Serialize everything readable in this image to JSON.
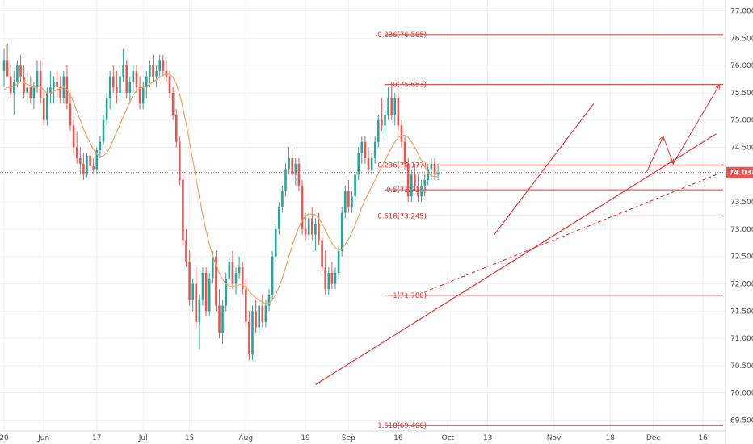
{
  "chart_data": {
    "type": "candlestick",
    "colors": {
      "up": "#26a69a",
      "down": "#ef5350",
      "ma": "#f4a261",
      "fib": "#e53935",
      "trend": "#e53935",
      "price_tag": "#ef5350",
      "grid": "#eef0f3",
      "axis_text": "#4a4a4a"
    },
    "ylim": [
      69.3,
      77.2
    ],
    "y_ticks": [
      "69.500",
      "70.000",
      "70.500",
      "71.000",
      "71.500",
      "72.000",
      "72.500",
      "73.000",
      "73.500",
      "74.000",
      "74.500",
      "75.000",
      "75.500",
      "76.000",
      "76.500",
      "77.000"
    ],
    "x_ticks": [
      {
        "label": "20",
        "day": 0
      },
      {
        "label": "Jun",
        "day": 12
      },
      {
        "label": "17",
        "day": 28
      },
      {
        "label": "Jul",
        "day": 42
      },
      {
        "label": "15",
        "day": 56
      },
      {
        "label": "Aug",
        "day": 73
      },
      {
        "label": "19",
        "day": 91
      },
      {
        "label": "Sep",
        "day": 104
      },
      {
        "label": "16",
        "day": 119
      },
      {
        "label": "Oct",
        "day": 134
      },
      {
        "label": "13",
        "day": 146
      },
      {
        "label": "Nov",
        "day": 166
      },
      {
        "label": "18",
        "day": 183
      },
      {
        "label": "Dec",
        "day": 196
      },
      {
        "label": "16",
        "day": 211
      }
    ],
    "last_price": {
      "label": "74.038",
      "value": 74.038
    },
    "fib_levels": [
      {
        "label": "-0.236(76.565)",
        "value": 76.565
      },
      {
        "label": "0(75.653)",
        "value": 75.653
      },
      {
        "label": "0.236(74.177)",
        "value": 74.177
      },
      {
        "label": "0.5(73.721)",
        "value": 73.721
      },
      {
        "label": "0.618(73.245)",
        "value": 73.245
      },
      {
        "label": "1(71.788)",
        "value": 71.788
      },
      {
        "label": "1.618(69.400)",
        "value": 69.4
      }
    ],
    "trendlines": [
      {
        "style": "solid",
        "from": {
          "day": 94,
          "y": 70.15
        },
        "to": {
          "day": 215,
          "y": 74.75
        }
      },
      {
        "style": "dashed",
        "from": {
          "day": 127,
          "y": 71.85
        },
        "to": {
          "day": 215,
          "y": 74.0
        }
      },
      {
        "style": "solid",
        "from": {
          "day": 148,
          "y": 72.9
        },
        "to": {
          "day": 178,
          "y": 75.3
        }
      }
    ],
    "projection_arrows": [
      {
        "from": {
          "day": 194,
          "y": 74.05
        },
        "to": {
          "day": 199,
          "y": 74.7
        }
      },
      {
        "from": {
          "day": 199,
          "y": 74.7
        },
        "to": {
          "day": 202,
          "y": 74.2
        }
      },
      {
        "from": {
          "day": 202,
          "y": 74.2
        },
        "to": {
          "day": 216,
          "y": 75.65
        }
      }
    ],
    "candles": [
      [
        75.9,
        76.3,
        75.6,
        76.1
      ],
      [
        76.1,
        76.4,
        75.8,
        75.8
      ],
      [
        75.8,
        76.0,
        75.4,
        75.5
      ],
      [
        75.5,
        75.9,
        75.1,
        75.7
      ],
      [
        75.7,
        76.1,
        75.6,
        76.0
      ],
      [
        76.0,
        76.2,
        75.7,
        75.8
      ],
      [
        75.8,
        76.0,
        75.4,
        75.5
      ],
      [
        75.5,
        75.9,
        75.3,
        75.6
      ],
      [
        75.6,
        75.8,
        75.3,
        75.4
      ],
      [
        75.4,
        75.7,
        75.2,
        75.6
      ],
      [
        75.6,
        76.1,
        75.5,
        75.9
      ],
      [
        75.9,
        76.1,
        75.3,
        75.4
      ],
      [
        75.4,
        75.6,
        74.9,
        75.0
      ],
      [
        75.0,
        75.6,
        74.9,
        75.5
      ],
      [
        75.5,
        75.9,
        75.3,
        75.6
      ],
      [
        75.6,
        75.8,
        75.3,
        75.7
      ],
      [
        75.7,
        75.9,
        75.4,
        75.6
      ],
      [
        75.6,
        75.8,
        75.3,
        75.4
      ],
      [
        75.4,
        75.9,
        75.3,
        75.8
      ],
      [
        75.8,
        76.0,
        75.2,
        75.3
      ],
      [
        75.3,
        75.5,
        74.8,
        74.9
      ],
      [
        74.9,
        75.0,
        74.4,
        74.5
      ],
      [
        74.5,
        74.8,
        74.2,
        74.3
      ],
      [
        74.3,
        74.5,
        74.0,
        74.2
      ],
      [
        74.2,
        74.4,
        73.9,
        74.0
      ],
      [
        74.0,
        74.4,
        73.95,
        74.35
      ],
      [
        74.35,
        74.5,
        74.1,
        74.15
      ],
      [
        74.15,
        74.3,
        74.0,
        74.1
      ],
      [
        74.1,
        74.5,
        74.0,
        74.45
      ],
      [
        74.45,
        74.7,
        74.3,
        74.6
      ],
      [
        74.6,
        75.1,
        74.55,
        75.0
      ],
      [
        75.0,
        75.5,
        74.9,
        75.4
      ],
      [
        75.4,
        75.9,
        75.2,
        75.8
      ],
      [
        75.8,
        76.0,
        75.5,
        75.6
      ],
      [
        75.6,
        75.9,
        75.3,
        75.5
      ],
      [
        75.5,
        75.9,
        75.4,
        75.8
      ],
      [
        75.8,
        76.3,
        75.7,
        76.0
      ],
      [
        76.0,
        76.1,
        75.4,
        75.5
      ],
      [
        75.5,
        75.8,
        75.3,
        75.7
      ],
      [
        75.7,
        76.0,
        75.5,
        75.9
      ],
      [
        75.9,
        76.0,
        75.5,
        75.6
      ],
      [
        75.6,
        75.8,
        75.2,
        75.3
      ],
      [
        75.3,
        75.7,
        75.2,
        75.6
      ],
      [
        75.6,
        75.9,
        75.4,
        75.8
      ],
      [
        75.8,
        76.1,
        75.6,
        76.0
      ],
      [
        76.0,
        76.2,
        75.7,
        75.8
      ],
      [
        75.8,
        76.0,
        75.6,
        75.9
      ],
      [
        75.9,
        76.2,
        75.8,
        76.1
      ],
      [
        76.1,
        76.2,
        75.8,
        75.9
      ],
      [
        75.9,
        76.1,
        75.7,
        75.8
      ],
      [
        75.8,
        75.9,
        75.4,
        75.5
      ],
      [
        75.5,
        75.6,
        75.0,
        75.1
      ],
      [
        75.1,
        75.2,
        74.5,
        74.6
      ],
      [
        74.6,
        74.7,
        73.8,
        73.9
      ],
      [
        73.9,
        74.0,
        72.7,
        72.8
      ],
      [
        72.8,
        73.0,
        72.3,
        72.4
      ],
      [
        72.4,
        72.6,
        71.6,
        71.7
      ],
      [
        71.7,
        72.1,
        71.5,
        72.0
      ],
      [
        72.0,
        72.3,
        71.2,
        71.3
      ],
      [
        71.3,
        71.8,
        70.8,
        71.7
      ],
      [
        71.7,
        72.3,
        71.6,
        72.2
      ],
      [
        72.2,
        72.3,
        71.4,
        71.5
      ],
      [
        71.5,
        72.2,
        71.4,
        72.1
      ],
      [
        72.1,
        72.6,
        72.0,
        72.5
      ],
      [
        72.5,
        72.6,
        71.5,
        71.6
      ],
      [
        71.6,
        71.9,
        71.0,
        71.1
      ],
      [
        71.1,
        71.7,
        70.9,
        71.6
      ],
      [
        71.6,
        72.2,
        71.5,
        72.1
      ],
      [
        72.1,
        72.5,
        72.0,
        72.4
      ],
      [
        72.4,
        72.6,
        71.9,
        72.0
      ],
      [
        72.0,
        72.3,
        71.8,
        72.2
      ],
      [
        72.2,
        72.5,
        72.1,
        72.3
      ],
      [
        72.3,
        72.4,
        71.8,
        71.9
      ],
      [
        71.9,
        72.1,
        71.2,
        71.3
      ],
      [
        71.3,
        71.5,
        70.6,
        70.7
      ],
      [
        70.7,
        71.6,
        70.6,
        71.5
      ],
      [
        71.5,
        71.7,
        71.1,
        71.2
      ],
      [
        71.2,
        71.7,
        71.1,
        71.6
      ],
      [
        71.6,
        71.8,
        71.2,
        71.3
      ],
      [
        71.3,
        71.7,
        71.2,
        71.6
      ],
      [
        71.6,
        71.9,
        71.5,
        71.8
      ],
      [
        71.8,
        72.6,
        71.7,
        72.5
      ],
      [
        72.5,
        73.1,
        72.4,
        73.0
      ],
      [
        73.0,
        73.5,
        72.9,
        73.4
      ],
      [
        73.4,
        73.8,
        73.3,
        73.7
      ],
      [
        73.7,
        74.2,
        73.6,
        74.1
      ],
      [
        74.1,
        74.5,
        74.0,
        74.3
      ],
      [
        74.3,
        74.5,
        73.9,
        74.0
      ],
      [
        74.0,
        74.3,
        73.8,
        74.2
      ],
      [
        74.2,
        74.3,
        73.7,
        73.8
      ],
      [
        73.8,
        73.9,
        72.9,
        73.0
      ],
      [
        73.0,
        73.3,
        72.8,
        72.9
      ],
      [
        72.9,
        73.3,
        72.8,
        73.2
      ],
      [
        73.2,
        73.4,
        72.8,
        72.9
      ],
      [
        72.9,
        73.2,
        72.6,
        73.1
      ],
      [
        73.1,
        73.3,
        72.7,
        72.8
      ],
      [
        72.8,
        72.9,
        72.2,
        72.3
      ],
      [
        72.3,
        72.6,
        71.8,
        71.9
      ],
      [
        71.9,
        72.3,
        71.8,
        72.2
      ],
      [
        72.2,
        72.4,
        71.9,
        72.0
      ],
      [
        72.0,
        72.3,
        71.9,
        72.2
      ],
      [
        72.2,
        72.7,
        72.1,
        72.6
      ],
      [
        72.6,
        73.4,
        72.5,
        73.3
      ],
      [
        73.3,
        73.8,
        73.2,
        73.7
      ],
      [
        73.7,
        73.9,
        73.3,
        73.4
      ],
      [
        73.4,
        73.7,
        73.3,
        73.6
      ],
      [
        73.6,
        74.1,
        73.5,
        74.0
      ],
      [
        74.0,
        74.5,
        73.9,
        74.4
      ],
      [
        74.4,
        74.7,
        74.2,
        74.6
      ],
      [
        74.6,
        74.7,
        74.2,
        74.3
      ],
      [
        74.3,
        74.5,
        74.0,
        74.1
      ],
      [
        74.1,
        74.4,
        74.0,
        74.3
      ],
      [
        74.3,
        74.7,
        74.2,
        74.6
      ],
      [
        74.6,
        75.1,
        74.5,
        75.0
      ],
      [
        75.0,
        75.4,
        74.8,
        74.9
      ],
      [
        74.9,
        75.2,
        74.7,
        75.1
      ],
      [
        75.1,
        75.6,
        75.0,
        75.4
      ],
      [
        75.4,
        75.7,
        75.0,
        75.1
      ],
      [
        75.1,
        75.5,
        74.9,
        75.4
      ],
      [
        75.4,
        75.5,
        74.8,
        74.9
      ],
      [
        74.9,
        75.0,
        74.5,
        74.6
      ],
      [
        74.6,
        74.7,
        74.1,
        74.2
      ],
      [
        74.2,
        74.3,
        73.5,
        73.6
      ],
      [
        73.6,
        74.1,
        73.5,
        74.0
      ],
      [
        74.0,
        74.2,
        73.7,
        73.8
      ],
      [
        73.8,
        74.0,
        73.5,
        73.6
      ],
      [
        73.6,
        73.9,
        73.5,
        73.8
      ],
      [
        73.8,
        74.0,
        73.6,
        73.9
      ],
      [
        73.9,
        74.2,
        73.8,
        74.1
      ],
      [
        74.1,
        74.3,
        73.9,
        74.2
      ],
      [
        74.2,
        74.3,
        73.9,
        74.0
      ],
      [
        74.0,
        74.2,
        73.9,
        74.038
      ]
    ],
    "ma_values": [
      75.55,
      75.6,
      75.6,
      75.62,
      75.66,
      75.7,
      75.68,
      75.66,
      75.62,
      75.6,
      75.62,
      75.62,
      75.55,
      75.48,
      75.48,
      75.52,
      75.56,
      75.58,
      75.6,
      75.56,
      75.46,
      75.32,
      75.16,
      75.0,
      74.84,
      74.7,
      74.58,
      74.46,
      74.38,
      74.34,
      74.34,
      74.4,
      74.5,
      74.64,
      74.78,
      74.92,
      75.06,
      75.2,
      75.34,
      75.46,
      75.54,
      75.58,
      75.6,
      75.62,
      75.66,
      75.7,
      75.74,
      75.78,
      75.82,
      75.84,
      75.84,
      75.78,
      75.66,
      75.48,
      75.22,
      74.94,
      74.6,
      74.26,
      73.92,
      73.58,
      73.26,
      72.98,
      72.72,
      72.52,
      72.34,
      72.2,
      72.08,
      72.0,
      71.96,
      71.94,
      71.96,
      71.98,
      71.98,
      71.94,
      71.86,
      71.8,
      71.74,
      71.7,
      71.66,
      71.64,
      71.64,
      71.7,
      71.8,
      71.94,
      72.1,
      72.3,
      72.5,
      72.7,
      72.88,
      73.04,
      73.16,
      73.24,
      73.28,
      73.28,
      73.26,
      73.2,
      73.1,
      72.98,
      72.86,
      72.74,
      72.66,
      72.62,
      72.64,
      72.72,
      72.82,
      72.94,
      73.08,
      73.24,
      73.4,
      73.54,
      73.66,
      73.78,
      73.9,
      74.02,
      74.14,
      74.26,
      74.38,
      74.5,
      74.6,
      74.68,
      74.72,
      74.72,
      74.68,
      74.6,
      74.5,
      74.38,
      74.26,
      74.14,
      74.04,
      73.98,
      73.96,
      73.96
    ]
  }
}
